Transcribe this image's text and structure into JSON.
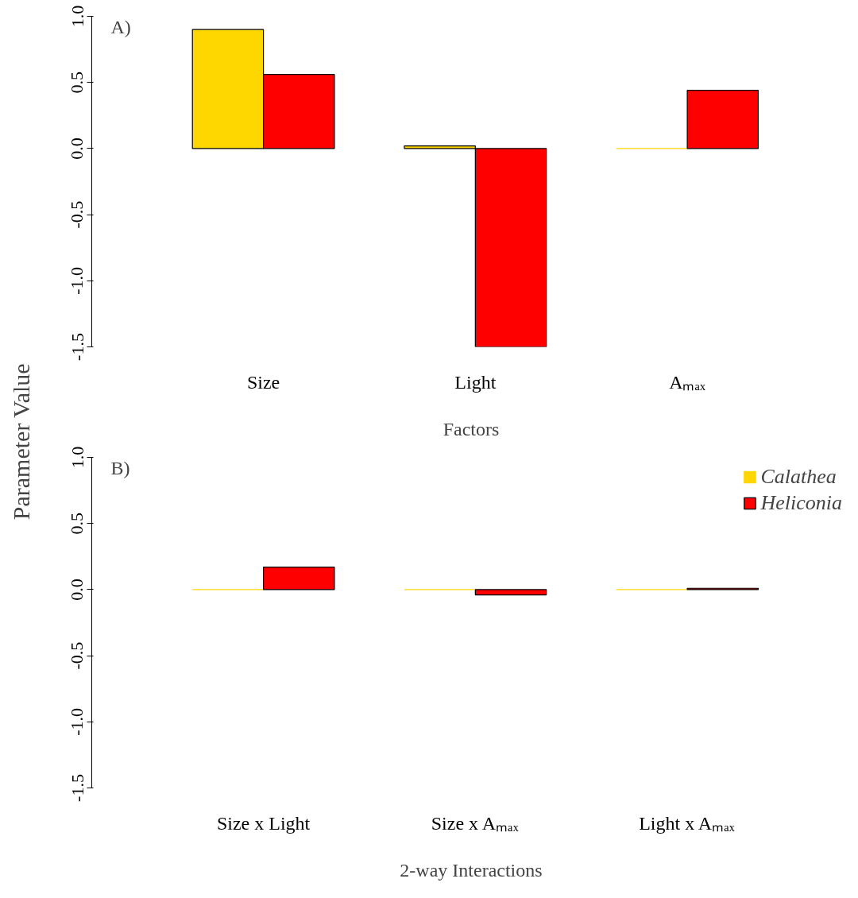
{
  "chart_data": [
    {
      "type": "bar",
      "ylabel": "Parameter Value",
      "xlabel": "Factors",
      "annotations": [
        "A)"
      ],
      "categories": [
        "Size",
        "Light",
        "Aₘₐₓ"
      ],
      "ylim": [
        -1.5,
        1.0
      ],
      "yticks": [
        {
          "value": -1.5,
          "label": "-1.5"
        },
        {
          "value": -1.0,
          "label": "-1.0"
        },
        {
          "value": -0.5,
          "label": "-0.5"
        },
        {
          "value": 0.0,
          "label": "0.0"
        },
        {
          "value": 0.5,
          "label": "0.5"
        },
        {
          "value": 1.0,
          "label": "1.0"
        }
      ],
      "grid": false,
      "series": [
        {
          "color": "#ffd700",
          "values": [
            0.9,
            0.02,
            0.0
          ]
        },
        {
          "color": "#ff0000",
          "values": [
            0.56,
            -1.5,
            0.44
          ]
        }
      ]
    },
    {
      "type": "bar",
      "xlabel": "2-way Interactions",
      "annotations": [
        "B)"
      ],
      "categories": [
        "Size x Light",
        "Size x Aₘₐₓ",
        "Light x Aₘₐₓ"
      ],
      "ylim": [
        -1.5,
        1.0
      ],
      "yticks": [
        {
          "value": -1.5,
          "label": "-1.5"
        },
        {
          "value": -1.0,
          "label": "-1.0"
        },
        {
          "value": -0.5,
          "label": "-0.5"
        },
        {
          "value": 0.0,
          "label": "0.0"
        },
        {
          "value": 0.5,
          "label": "0.5"
        },
        {
          "value": 1.0,
          "label": "1.0"
        }
      ],
      "grid": false,
      "legend": "top right",
      "series": [
        {
          "name": "Calathea",
          "color": "#ffd700",
          "values": [
            0.0,
            0.0,
            0.0
          ]
        },
        {
          "name": "Heliconia",
          "color": "#ff0000",
          "values": [
            0.17,
            -0.04,
            0.01
          ]
        }
      ]
    }
  ]
}
